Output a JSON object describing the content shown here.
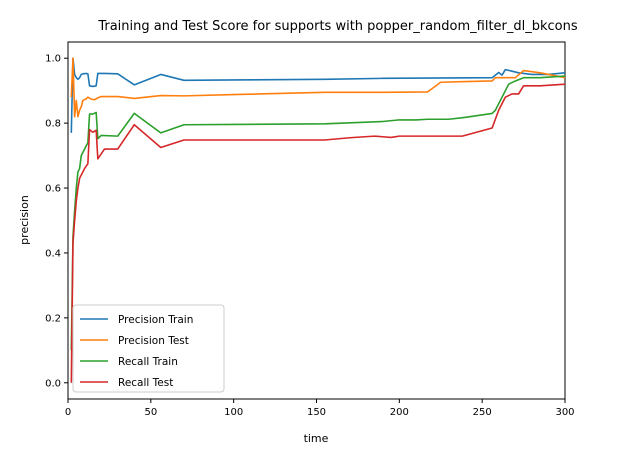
{
  "chart_data": {
    "type": "line",
    "title": "Training and Test Score for supports with popper_random_filter_dl_bkcons",
    "xlabel": "time",
    "ylabel": "precision",
    "xlim": [
      0,
      300
    ],
    "ylim": [
      -0.05,
      1.05
    ],
    "xticks": [
      0,
      50,
      100,
      150,
      200,
      250,
      300
    ],
    "yticks": [
      0.0,
      0.2,
      0.4,
      0.6,
      0.8,
      1.0
    ],
    "xtick_labels": [
      "0",
      "50",
      "100",
      "150",
      "200",
      "250",
      "300"
    ],
    "ytick_labels": [
      "0.0",
      "0.2",
      "0.4",
      "0.6",
      "0.8",
      "1.0"
    ],
    "grid": false,
    "legend_position": "lower-left",
    "series": [
      {
        "name": "Precision Train",
        "color": "#1f77b4",
        "points": [
          [
            2,
            0.77
          ],
          [
            3,
            1.0
          ],
          [
            4,
            0.95
          ],
          [
            5,
            0.94
          ],
          [
            6,
            0.935
          ],
          [
            7,
            0.94
          ],
          [
            8,
            0.95
          ],
          [
            9,
            0.952
          ],
          [
            11,
            0.953
          ],
          [
            12,
            0.952
          ],
          [
            13,
            0.915
          ],
          [
            15,
            0.913
          ],
          [
            17,
            0.915
          ],
          [
            18,
            0.953
          ],
          [
            22,
            0.953
          ],
          [
            30,
            0.952
          ],
          [
            40,
            0.918
          ],
          [
            56,
            0.95
          ],
          [
            70,
            0.932
          ],
          [
            100,
            0.933
          ],
          [
            155,
            0.935
          ],
          [
            190,
            0.938
          ],
          [
            256,
            0.94
          ],
          [
            260,
            0.956
          ],
          [
            262,
            0.948
          ],
          [
            264,
            0.965
          ],
          [
            268,
            0.96
          ],
          [
            272,
            0.955
          ],
          [
            280,
            0.95
          ],
          [
            290,
            0.95
          ],
          [
            300,
            0.955
          ]
        ]
      },
      {
        "name": "Precision Test",
        "color": "#ff7f0e",
        "points": [
          [
            2,
            0.88
          ],
          [
            3,
            1.0
          ],
          [
            4,
            0.82
          ],
          [
            5,
            0.87
          ],
          [
            6,
            0.82
          ],
          [
            7,
            0.84
          ],
          [
            8,
            0.85
          ],
          [
            9,
            0.87
          ],
          [
            11,
            0.875
          ],
          [
            12,
            0.88
          ],
          [
            14,
            0.874
          ],
          [
            16,
            0.872
          ],
          [
            18,
            0.878
          ],
          [
            20,
            0.882
          ],
          [
            30,
            0.882
          ],
          [
            40,
            0.876
          ],
          [
            56,
            0.885
          ],
          [
            70,
            0.884
          ],
          [
            100,
            0.888
          ],
          [
            155,
            0.895
          ],
          [
            190,
            0.895
          ],
          [
            217,
            0.896
          ],
          [
            225,
            0.926
          ],
          [
            240,
            0.928
          ],
          [
            256,
            0.93
          ],
          [
            258,
            0.94
          ],
          [
            264,
            0.94
          ],
          [
            270,
            0.94
          ],
          [
            275,
            0.962
          ],
          [
            285,
            0.955
          ],
          [
            300,
            0.94
          ]
        ]
      },
      {
        "name": "Recall Train",
        "color": "#2ca02c",
        "points": [
          [
            2,
            0.1
          ],
          [
            3,
            0.45
          ],
          [
            4,
            0.53
          ],
          [
            5,
            0.6
          ],
          [
            6,
            0.65
          ],
          [
            7,
            0.66
          ],
          [
            8,
            0.7
          ],
          [
            10,
            0.72
          ],
          [
            12,
            0.74
          ],
          [
            13,
            0.828
          ],
          [
            15,
            0.828
          ],
          [
            17,
            0.833
          ],
          [
            18,
            0.752
          ],
          [
            20,
            0.762
          ],
          [
            30,
            0.76
          ],
          [
            40,
            0.83
          ],
          [
            56,
            0.77
          ],
          [
            70,
            0.795
          ],
          [
            100,
            0.796
          ],
          [
            155,
            0.798
          ],
          [
            190,
            0.805
          ],
          [
            200,
            0.81
          ],
          [
            210,
            0.81
          ],
          [
            217,
            0.812
          ],
          [
            230,
            0.812
          ],
          [
            240,
            0.818
          ],
          [
            256,
            0.83
          ],
          [
            258,
            0.84
          ],
          [
            264,
            0.9
          ],
          [
            266,
            0.92
          ],
          [
            270,
            0.93
          ],
          [
            275,
            0.94
          ],
          [
            285,
            0.94
          ],
          [
            300,
            0.945
          ]
        ]
      },
      {
        "name": "Recall Test",
        "color": "#d62728",
        "points": [
          [
            2,
            0.0
          ],
          [
            3,
            0.43
          ],
          [
            4,
            0.5
          ],
          [
            5,
            0.56
          ],
          [
            6,
            0.6
          ],
          [
            7,
            0.63
          ],
          [
            8,
            0.64
          ],
          [
            10,
            0.66
          ],
          [
            12,
            0.675
          ],
          [
            13,
            0.78
          ],
          [
            15,
            0.772
          ],
          [
            17,
            0.778
          ],
          [
            18,
            0.69
          ],
          [
            20,
            0.705
          ],
          [
            22,
            0.72
          ],
          [
            30,
            0.72
          ],
          [
            40,
            0.795
          ],
          [
            56,
            0.725
          ],
          [
            70,
            0.748
          ],
          [
            100,
            0.748
          ],
          [
            155,
            0.748
          ],
          [
            170,
            0.755
          ],
          [
            185,
            0.76
          ],
          [
            195,
            0.756
          ],
          [
            200,
            0.76
          ],
          [
            217,
            0.76
          ],
          [
            238,
            0.76
          ],
          [
            256,
            0.785
          ],
          [
            260,
            0.84
          ],
          [
            262,
            0.86
          ],
          [
            264,
            0.88
          ],
          [
            266,
            0.885
          ],
          [
            268,
            0.89
          ],
          [
            272,
            0.89
          ],
          [
            275,
            0.915
          ],
          [
            285,
            0.915
          ],
          [
            300,
            0.92
          ]
        ]
      }
    ]
  }
}
